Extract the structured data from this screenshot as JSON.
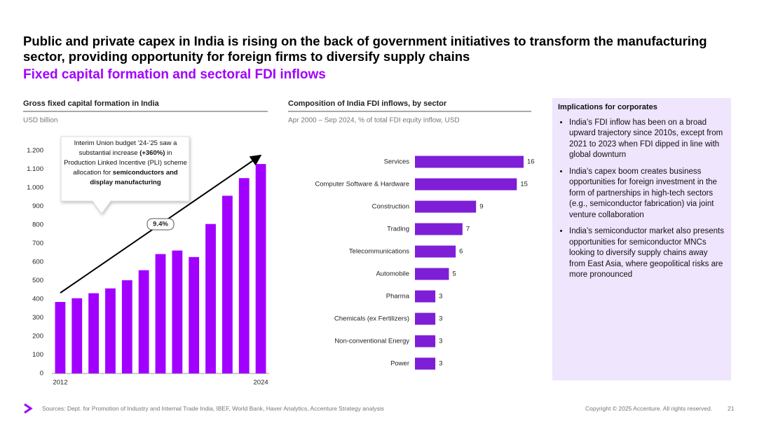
{
  "header": {
    "title": "Public and private capex in India is rising on the back of government initiatives to transform the manufacturing sector, providing opportunity for foreign firms to diversify supply chains",
    "subtitle": "Fixed capital formation and sectoral FDI inflows"
  },
  "chart_data": [
    {
      "type": "bar",
      "title": "Gross fixed capital formation in India",
      "subtitle": "USD billion",
      "categories": [
        "2012",
        null,
        null,
        null,
        null,
        null,
        null,
        null,
        null,
        null,
        null,
        null,
        "2024"
      ],
      "values": [
        385,
        405,
        432,
        458,
        502,
        556,
        643,
        662,
        627,
        805,
        957,
        1052,
        1128
      ],
      "color": "#a100ff",
      "ylim": [
        0,
        1200
      ],
      "yticks": [
        0,
        100,
        200,
        300,
        400,
        500,
        600,
        700,
        800,
        900,
        {
          "value": 1000,
          "label": "1.000"
        },
        {
          "value": 1100,
          "label": "1.100"
        },
        {
          "value": 1200,
          "label": "1.200"
        }
      ],
      "annotations": {
        "trend": "9.4%",
        "callout": [
          {
            "text": "Interim Union budget ’24-’25 saw a substantial increase ",
            "bold": false
          },
          {
            "text": "(+360%)",
            "bold": true
          },
          {
            "text": " in Production Linked Incentive (PLI) scheme allocation for ",
            "bold": false
          },
          {
            "text": "semiconductors and display manufacturing",
            "bold": true
          }
        ]
      }
    },
    {
      "type": "hbar",
      "title": "Composition of India FDI inflows, by sector",
      "subtitle": "Apr 2000 – Sep 2024, % of total FDI equity inflow, USD",
      "categories": [
        "Services",
        "Computer Software & Hardware",
        "Construction",
        "Trading",
        "Telecommunications",
        "Automobile",
        "Pharma",
        "Chemicals (ex Fertilizers)",
        "Non-conventional Energy",
        "Power"
      ],
      "values": [
        16,
        15,
        9,
        7,
        6,
        5,
        3,
        3,
        3,
        3
      ],
      "color": "#7e1ed6",
      "xlim": [
        0,
        16
      ]
    }
  ],
  "sidebar": {
    "title": "Implications for corporates",
    "bullets": [
      "India’s FDI inflow has been on a broad upward trajectory since 2010s, except from 2021 to 2023 when FDI dipped in line with global downturn",
      "India’s capex boom creates business opportunities for foreign investment in the form of partnerships in high-tech sectors (e.g., semiconductor fabrication) via joint venture collaboration",
      "India’s semiconductor market also presents opportunities for semiconductor MNCs looking to diversify supply chains away from East Asia, where geopolitical risks are more pronounced"
    ]
  },
  "footer": {
    "sources": "Sources: Dept. for Promotion of Industry and Internal Trade India, IBEF, World Bank, Haver Analytics, Accenture Strategy analysis",
    "copyright": "Copyright © 2025 Accenture. All rights reserved.",
    "page": "21"
  }
}
